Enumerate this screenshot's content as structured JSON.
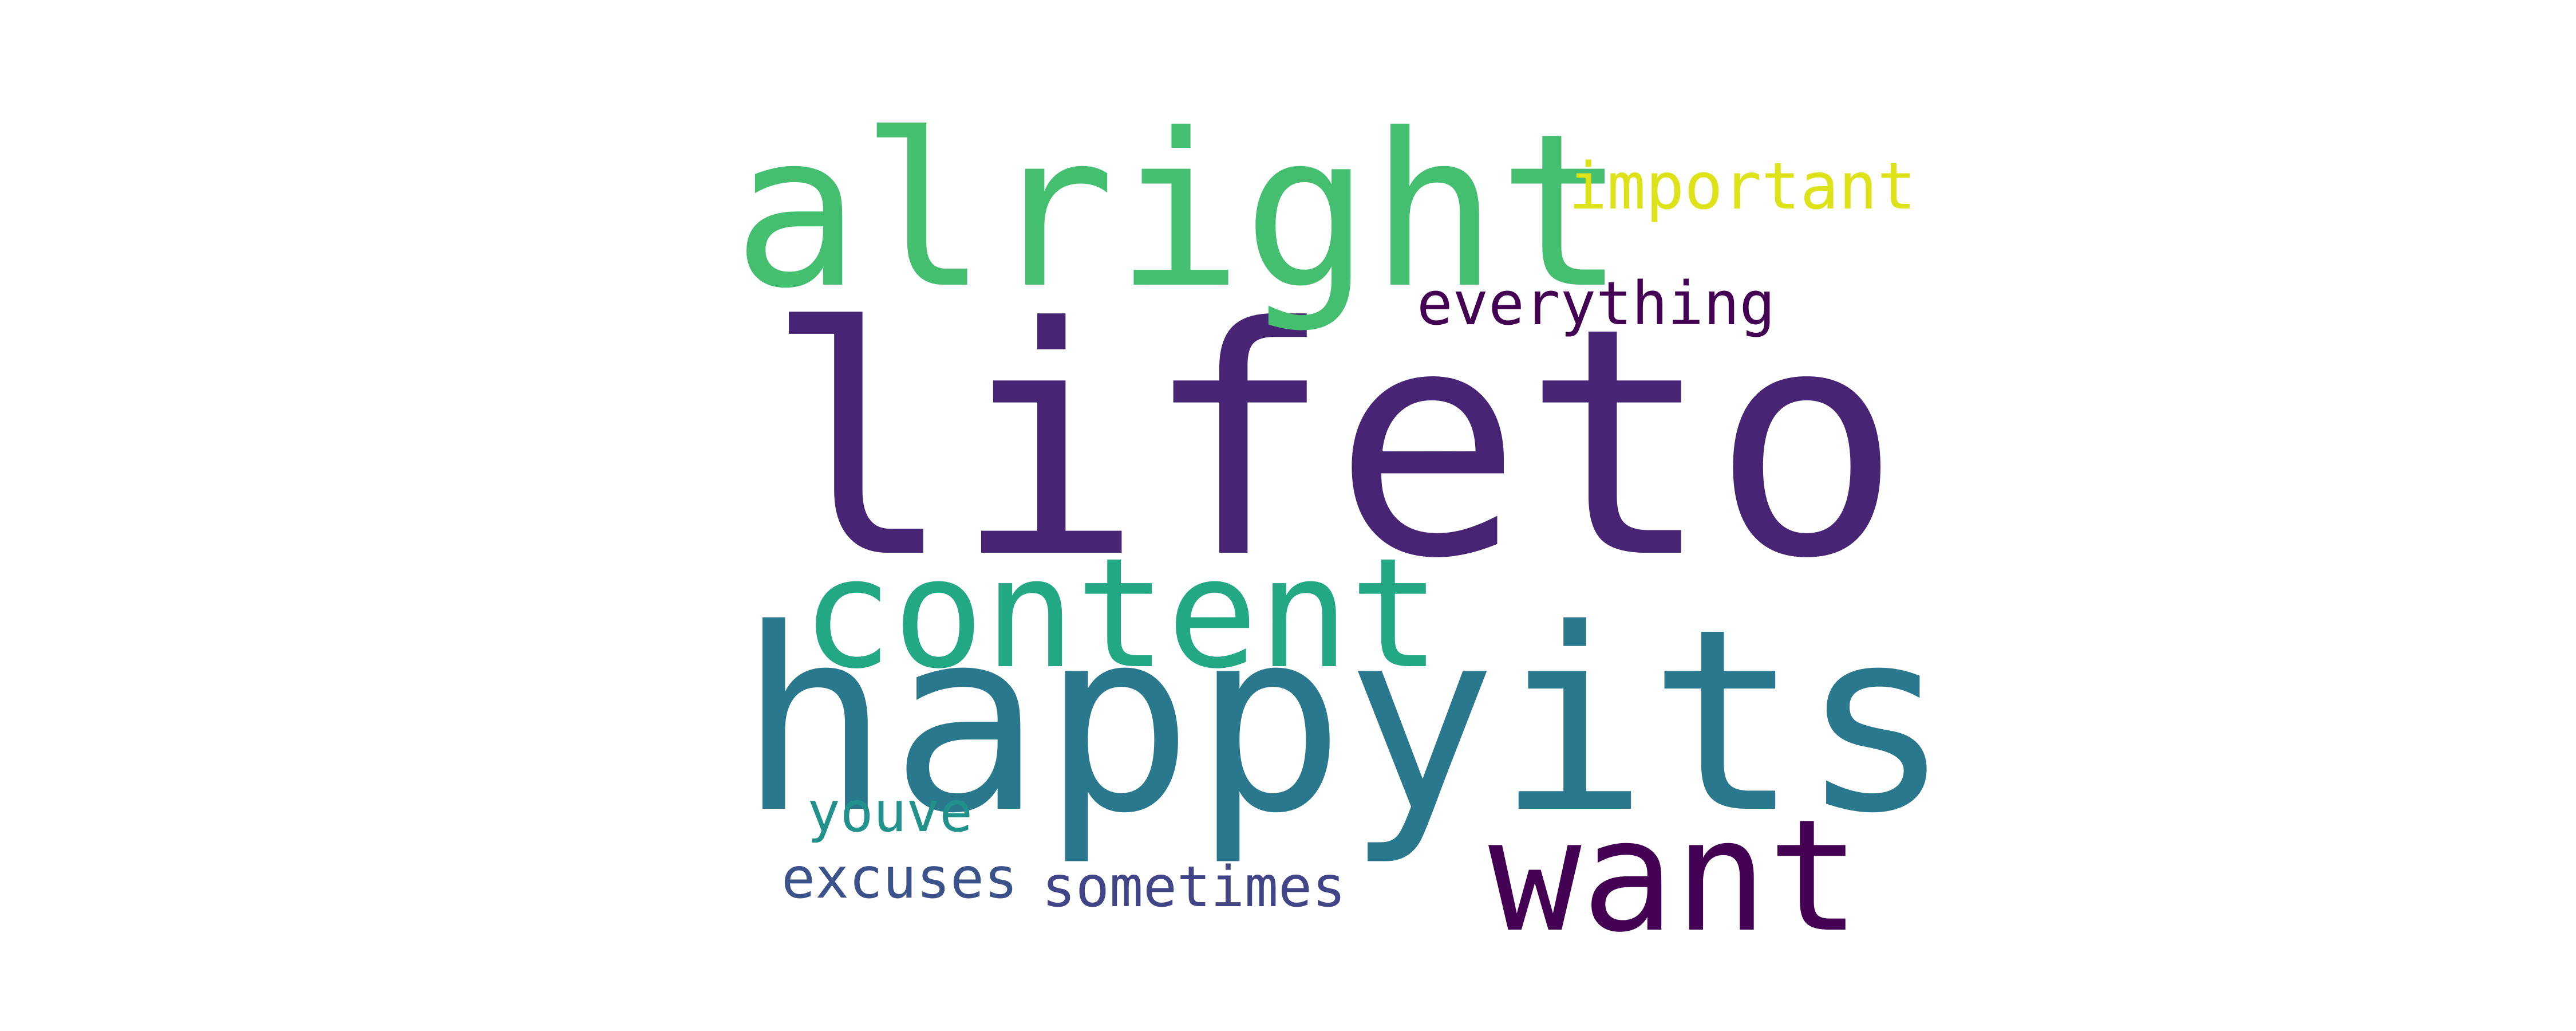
{
  "words": [
    {
      "text": "lifeto",
      "color": "#482475"
    },
    {
      "text": "happyits",
      "color": "#2a788e"
    },
    {
      "text": "alright",
      "color": "#44bf70"
    },
    {
      "text": "content",
      "color": "#22a884"
    },
    {
      "text": "want",
      "color": "#440154"
    },
    {
      "text": "important",
      "color": "#dde318"
    },
    {
      "text": "everything",
      "color": "#440154"
    },
    {
      "text": "youve",
      "color": "#21918c"
    },
    {
      "text": "excuses",
      "color": "#3b528b"
    },
    {
      "text": "sometimes",
      "color": "#414487"
    }
  ]
}
